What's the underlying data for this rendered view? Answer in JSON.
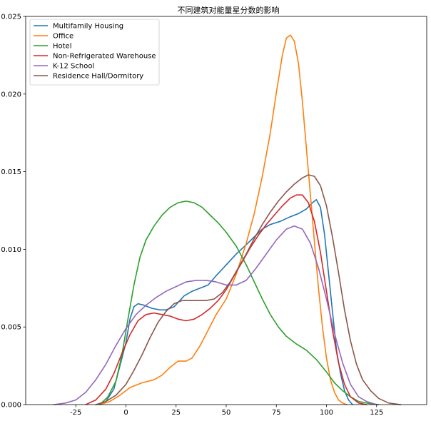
{
  "chart_data": {
    "type": "line",
    "title": "不同建筑对能量星分数的影响",
    "xlabel": "",
    "ylabel": "",
    "xlim": [
      -50,
      150
    ],
    "ylim": [
      0,
      0.025
    ],
    "xticks": [
      -25,
      0,
      25,
      50,
      75,
      100,
      125
    ],
    "xtick_labels": [
      "-25",
      "0",
      "25",
      "50",
      "75",
      "100",
      "125"
    ],
    "yticks": [
      0,
      0.005,
      0.01,
      0.015,
      0.02,
      0.025
    ],
    "ytick_labels": [
      "0.000",
      "0.005",
      "0.010",
      "0.015",
      "0.020",
      "0.025"
    ],
    "grid": false,
    "legend_position": "upper-left",
    "series": [
      {
        "name": "Multifamily Housing",
        "color": "#1f77b4",
        "points": [
          [
            -13,
            0
          ],
          [
            -10,
            0.0002
          ],
          [
            -6,
            0.001
          ],
          [
            -3,
            0.0025
          ],
          [
            0,
            0.004
          ],
          [
            2,
            0.0055
          ],
          [
            4,
            0.0063
          ],
          [
            6,
            0.0065
          ],
          [
            9,
            0.0064
          ],
          [
            13,
            0.0062
          ],
          [
            17,
            0.0061
          ],
          [
            20,
            0.0061
          ],
          [
            24,
            0.0063
          ],
          [
            29,
            0.007
          ],
          [
            33,
            0.0073
          ],
          [
            37,
            0.0075
          ],
          [
            41,
            0.0077
          ],
          [
            45,
            0.0083
          ],
          [
            50,
            0.009
          ],
          [
            55,
            0.0097
          ],
          [
            60,
            0.0103
          ],
          [
            64,
            0.0108
          ],
          [
            68,
            0.0113
          ],
          [
            72,
            0.0116
          ],
          [
            77,
            0.0118
          ],
          [
            82,
            0.0121
          ],
          [
            86,
            0.0123
          ],
          [
            90,
            0.0126
          ],
          [
            93,
            0.013
          ],
          [
            95,
            0.0132
          ],
          [
            97,
            0.0127
          ],
          [
            99,
            0.011
          ],
          [
            101,
            0.0085
          ],
          [
            103,
            0.006
          ],
          [
            105,
            0.0035
          ],
          [
            107,
            0.002
          ],
          [
            109,
            0.0009
          ],
          [
            111,
            0.0003
          ],
          [
            113,
            0
          ]
        ]
      },
      {
        "name": "Office",
        "color": "#ff7f0e",
        "points": [
          [
            -13,
            0
          ],
          [
            -8,
            0.0002
          ],
          [
            -3,
            0.0006
          ],
          [
            2,
            0.0011
          ],
          [
            8,
            0.0014
          ],
          [
            14,
            0.0016
          ],
          [
            18,
            0.0019
          ],
          [
            22,
            0.0024
          ],
          [
            26,
            0.0028
          ],
          [
            30,
            0.0028
          ],
          [
            33,
            0.003
          ],
          [
            37,
            0.0038
          ],
          [
            41,
            0.0048
          ],
          [
            45,
            0.0058
          ],
          [
            50,
            0.0068
          ],
          [
            55,
            0.0084
          ],
          [
            60,
            0.0104
          ],
          [
            64,
            0.0123
          ],
          [
            68,
            0.0147
          ],
          [
            72,
            0.0175
          ],
          [
            75,
            0.0201
          ],
          [
            78,
            0.0225
          ],
          [
            80,
            0.0236
          ],
          [
            82,
            0.0238
          ],
          [
            84,
            0.0234
          ],
          [
            86,
            0.022
          ],
          [
            88,
            0.0195
          ],
          [
            90,
            0.0165
          ],
          [
            92,
            0.0135
          ],
          [
            94,
            0.0105
          ],
          [
            96,
            0.0075
          ],
          [
            98,
            0.005
          ],
          [
            100,
            0.003
          ],
          [
            102,
            0.0016
          ],
          [
            104,
            0.0008
          ],
          [
            106,
            0.0003
          ],
          [
            108,
            0.0001
          ],
          [
            110,
            0
          ]
        ]
      },
      {
        "name": "Hotel",
        "color": "#2ca02c",
        "points": [
          [
            -13,
            0
          ],
          [
            -9,
            0.0005
          ],
          [
            -5,
            0.0015
          ],
          [
            -2,
            0.0032
          ],
          [
            1,
            0.0055
          ],
          [
            4,
            0.0077
          ],
          [
            7,
            0.0095
          ],
          [
            10,
            0.0106
          ],
          [
            14,
            0.0115
          ],
          [
            18,
            0.0122
          ],
          [
            22,
            0.0127
          ],
          [
            26,
            0.013
          ],
          [
            30,
            0.0131
          ],
          [
            34,
            0.013
          ],
          [
            38,
            0.0127
          ],
          [
            42,
            0.0122
          ],
          [
            46,
            0.0117
          ],
          [
            50,
            0.0111
          ],
          [
            55,
            0.0102
          ],
          [
            60,
            0.009
          ],
          [
            64,
            0.0079
          ],
          [
            68,
            0.0068
          ],
          [
            72,
            0.0058
          ],
          [
            76,
            0.005
          ],
          [
            80,
            0.0044
          ],
          [
            85,
            0.0039
          ],
          [
            90,
            0.0035
          ],
          [
            95,
            0.0029
          ],
          [
            100,
            0.0021
          ],
          [
            104,
            0.0014
          ],
          [
            108,
            0.0009
          ],
          [
            112,
            0.0005
          ],
          [
            116,
            0.0002
          ],
          [
            120,
            0.0001
          ],
          [
            126,
            0
          ]
        ]
      },
      {
        "name": "Non-Refrigerated Warehouse",
        "color": "#d62728",
        "points": [
          [
            -20,
            0
          ],
          [
            -15,
            0.0003
          ],
          [
            -10,
            0.001
          ],
          [
            -6,
            0.002
          ],
          [
            -2,
            0.0033
          ],
          [
            2,
            0.0045
          ],
          [
            6,
            0.0054
          ],
          [
            10,
            0.0058
          ],
          [
            14,
            0.0059
          ],
          [
            18,
            0.0058
          ],
          [
            22,
            0.0057
          ],
          [
            26,
            0.0055
          ],
          [
            30,
            0.0054
          ],
          [
            34,
            0.0055
          ],
          [
            38,
            0.0058
          ],
          [
            42,
            0.0062
          ],
          [
            46,
            0.0067
          ],
          [
            50,
            0.0074
          ],
          [
            54,
            0.0083
          ],
          [
            58,
            0.0092
          ],
          [
            62,
            0.0101
          ],
          [
            66,
            0.0109
          ],
          [
            70,
            0.0116
          ],
          [
            74,
            0.0122
          ],
          [
            78,
            0.0128
          ],
          [
            82,
            0.0133
          ],
          [
            85,
            0.0135
          ],
          [
            88,
            0.0135
          ],
          [
            91,
            0.013
          ],
          [
            94,
            0.0118
          ],
          [
            97,
            0.0098
          ],
          [
            100,
            0.0073
          ],
          [
            103,
            0.0048
          ],
          [
            106,
            0.0027
          ],
          [
            109,
            0.0013
          ],
          [
            112,
            0.0005
          ],
          [
            116,
            0.0001
          ],
          [
            120,
            0
          ]
        ]
      },
      {
        "name": "K-12 School",
        "color": "#9467bd",
        "points": [
          [
            -36,
            0
          ],
          [
            -30,
            0.0001
          ],
          [
            -25,
            0.0003
          ],
          [
            -20,
            0.0008
          ],
          [
            -15,
            0.0016
          ],
          [
            -10,
            0.0026
          ],
          [
            -5,
            0.0038
          ],
          [
            0,
            0.0049
          ],
          [
            5,
            0.0058
          ],
          [
            10,
            0.0064
          ],
          [
            15,
            0.0069
          ],
          [
            20,
            0.0073
          ],
          [
            25,
            0.0076
          ],
          [
            30,
            0.0079
          ],
          [
            35,
            0.008
          ],
          [
            40,
            0.008
          ],
          [
            45,
            0.0079
          ],
          [
            50,
            0.0077
          ],
          [
            55,
            0.0077
          ],
          [
            60,
            0.008
          ],
          [
            65,
            0.0088
          ],
          [
            70,
            0.0097
          ],
          [
            75,
            0.0106
          ],
          [
            80,
            0.0113
          ],
          [
            84,
            0.0115
          ],
          [
            88,
            0.0113
          ],
          [
            92,
            0.0104
          ],
          [
            96,
            0.0088
          ],
          [
            100,
            0.0068
          ],
          [
            104,
            0.0046
          ],
          [
            108,
            0.0027
          ],
          [
            112,
            0.0013
          ],
          [
            116,
            0.0005
          ],
          [
            120,
            0.0002
          ],
          [
            125,
            0
          ]
        ]
      },
      {
        "name": "Residence Hall/Dormitory",
        "color": "#8c564b",
        "points": [
          [
            -15,
            0
          ],
          [
            -10,
            0.0002
          ],
          [
            -5,
            0.0006
          ],
          [
            0,
            0.0013
          ],
          [
            4,
            0.0022
          ],
          [
            8,
            0.0032
          ],
          [
            12,
            0.0043
          ],
          [
            16,
            0.0053
          ],
          [
            20,
            0.006
          ],
          [
            24,
            0.0065
          ],
          [
            28,
            0.0067
          ],
          [
            32,
            0.0067
          ],
          [
            36,
            0.0067
          ],
          [
            40,
            0.0067
          ],
          [
            44,
            0.0068
          ],
          [
            48,
            0.0072
          ],
          [
            52,
            0.0079
          ],
          [
            56,
            0.0088
          ],
          [
            60,
            0.0097
          ],
          [
            64,
            0.0107
          ],
          [
            68,
            0.0116
          ],
          [
            72,
            0.0124
          ],
          [
            76,
            0.0131
          ],
          [
            80,
            0.0137
          ],
          [
            84,
            0.0142
          ],
          [
            88,
            0.0146
          ],
          [
            91,
            0.0148
          ],
          [
            94,
            0.0147
          ],
          [
            97,
            0.0141
          ],
          [
            100,
            0.0128
          ],
          [
            103,
            0.0108
          ],
          [
            106,
            0.0085
          ],
          [
            109,
            0.0061
          ],
          [
            112,
            0.0041
          ],
          [
            115,
            0.0026
          ],
          [
            118,
            0.0016
          ],
          [
            122,
            0.0009
          ],
          [
            126,
            0.0004
          ],
          [
            131,
            0.0001
          ],
          [
            137,
            0
          ]
        ]
      }
    ]
  }
}
